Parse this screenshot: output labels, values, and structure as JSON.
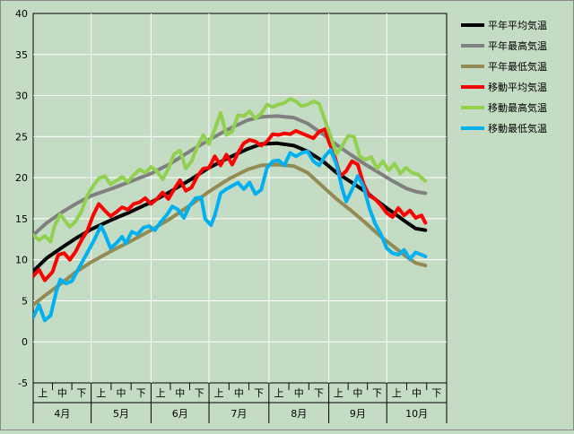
{
  "chart_data": {
    "type": "line",
    "title": "",
    "xlabel": "",
    "ylabel": "",
    "ylim": [
      -5,
      40
    ],
    "yticks": [
      -5,
      0,
      5,
      10,
      15,
      20,
      25,
      30,
      35,
      40
    ],
    "grid": true,
    "legend_position": "top-right",
    "months": [
      "4月",
      "5月",
      "6月",
      "7月",
      "8月",
      "9月",
      "10月"
    ],
    "thirds": [
      "上",
      "中",
      "下"
    ],
    "x_start": "4/1",
    "x_end": "10/31",
    "series": [
      {
        "name": "平年平均気温",
        "color": "#000000",
        "points": [
          [
            0,
            8.6
          ],
          [
            7,
            10.2
          ],
          [
            15,
            11.5
          ],
          [
            22,
            12.6
          ],
          [
            30,
            13.7
          ],
          [
            40,
            14.8
          ],
          [
            50,
            15.8
          ],
          [
            61,
            17.0
          ],
          [
            71,
            18.3
          ],
          [
            81,
            19.7
          ],
          [
            91,
            21.2
          ],
          [
            101,
            22.4
          ],
          [
            111,
            23.5
          ],
          [
            118,
            24.1
          ],
          [
            126,
            24.2
          ],
          [
            135,
            23.9
          ],
          [
            142,
            23.2
          ],
          [
            150,
            22.0
          ],
          [
            157,
            20.6
          ],
          [
            165,
            19.4
          ],
          [
            172,
            18.3
          ],
          [
            179,
            17.0
          ],
          [
            186,
            15.8
          ],
          [
            193,
            14.6
          ],
          [
            198,
            13.8
          ],
          [
            203,
            13.6
          ]
        ]
      },
      {
        "name": "平年最高気温",
        "color": "#808080",
        "points": [
          [
            0,
            13.0
          ],
          [
            7,
            14.5
          ],
          [
            15,
            15.8
          ],
          [
            22,
            16.8
          ],
          [
            30,
            17.8
          ],
          [
            40,
            18.6
          ],
          [
            50,
            19.5
          ],
          [
            61,
            20.5
          ],
          [
            71,
            21.7
          ],
          [
            81,
            23.2
          ],
          [
            91,
            24.6
          ],
          [
            101,
            25.9
          ],
          [
            111,
            27.0
          ],
          [
            118,
            27.4
          ],
          [
            126,
            27.5
          ],
          [
            135,
            27.3
          ],
          [
            142,
            26.6
          ],
          [
            150,
            25.3
          ],
          [
            157,
            24.0
          ],
          [
            165,
            22.7
          ],
          [
            172,
            21.6
          ],
          [
            179,
            20.6
          ],
          [
            186,
            19.6
          ],
          [
            193,
            18.7
          ],
          [
            198,
            18.3
          ],
          [
            203,
            18.1
          ]
        ]
      },
      {
        "name": "平年最低気温",
        "color": "#948a54",
        "points": [
          [
            0,
            4.5
          ],
          [
            7,
            5.8
          ],
          [
            15,
            7.2
          ],
          [
            22,
            8.5
          ],
          [
            30,
            9.7
          ],
          [
            40,
            11.0
          ],
          [
            50,
            12.2
          ],
          [
            61,
            13.6
          ],
          [
            71,
            15.0
          ],
          [
            81,
            16.6
          ],
          [
            91,
            18.3
          ],
          [
            101,
            19.8
          ],
          [
            111,
            21.0
          ],
          [
            118,
            21.5
          ],
          [
            126,
            21.6
          ],
          [
            135,
            21.4
          ],
          [
            142,
            20.6
          ],
          [
            150,
            18.9
          ],
          [
            157,
            17.4
          ],
          [
            165,
            15.9
          ],
          [
            172,
            14.5
          ],
          [
            179,
            13.0
          ],
          [
            186,
            11.7
          ],
          [
            193,
            10.4
          ],
          [
            198,
            9.6
          ],
          [
            203,
            9.3
          ]
        ]
      },
      {
        "name": "移動平均気温",
        "color": "#ff0000",
        "points": [
          [
            0,
            8.0
          ],
          [
            3,
            8.8
          ],
          [
            6,
            7.5
          ],
          [
            10,
            8.5
          ],
          [
            13,
            10.6
          ],
          [
            16,
            10.8
          ],
          [
            19,
            10.0
          ],
          [
            22,
            11.0
          ],
          [
            25,
            12.4
          ],
          [
            28,
            13.5
          ],
          [
            31,
            15.4
          ],
          [
            34,
            16.8
          ],
          [
            37,
            16.0
          ],
          [
            40,
            15.3
          ],
          [
            43,
            15.8
          ],
          [
            46,
            16.4
          ],
          [
            49,
            16.1
          ],
          [
            52,
            16.8
          ],
          [
            55,
            17.0
          ],
          [
            58,
            17.5
          ],
          [
            61,
            16.8
          ],
          [
            64,
            17.4
          ],
          [
            67,
            18.2
          ],
          [
            70,
            17.4
          ],
          [
            73,
            18.6
          ],
          [
            76,
            19.7
          ],
          [
            79,
            18.4
          ],
          [
            82,
            18.8
          ],
          [
            85,
            20.2
          ],
          [
            88,
            21.1
          ],
          [
            91,
            21.2
          ],
          [
            94,
            22.6
          ],
          [
            97,
            21.5
          ],
          [
            100,
            22.8
          ],
          [
            103,
            21.6
          ],
          [
            106,
            23.0
          ],
          [
            109,
            24.2
          ],
          [
            112,
            24.6
          ],
          [
            115,
            24.4
          ],
          [
            118,
            23.9
          ],
          [
            121,
            24.4
          ],
          [
            124,
            25.3
          ],
          [
            127,
            25.2
          ],
          [
            130,
            25.4
          ],
          [
            133,
            25.3
          ],
          [
            136,
            25.7
          ],
          [
            139,
            25.4
          ],
          [
            142,
            25.1
          ],
          [
            145,
            24.8
          ],
          [
            148,
            25.6
          ],
          [
            151,
            25.9
          ],
          [
            153,
            24.4
          ],
          [
            156,
            22.6
          ],
          [
            159,
            20.2
          ],
          [
            162,
            20.8
          ],
          [
            165,
            22.0
          ],
          [
            168,
            21.6
          ],
          [
            171,
            19.2
          ],
          [
            174,
            17.8
          ],
          [
            177,
            17.4
          ],
          [
            180,
            16.6
          ],
          [
            183,
            15.7
          ],
          [
            186,
            15.2
          ],
          [
            189,
            16.3
          ],
          [
            192,
            15.4
          ],
          [
            195,
            16.0
          ],
          [
            198,
            15.1
          ],
          [
            201,
            15.4
          ],
          [
            203,
            14.5
          ]
        ]
      },
      {
        "name": "移動最高気温",
        "color": "#92d050",
        "points": [
          [
            0,
            13.0
          ],
          [
            3,
            12.4
          ],
          [
            6,
            12.9
          ],
          [
            9,
            12.2
          ],
          [
            11,
            14.1
          ],
          [
            14,
            15.5
          ],
          [
            17,
            14.6
          ],
          [
            19,
            14.0
          ],
          [
            22,
            14.7
          ],
          [
            25,
            15.9
          ],
          [
            28,
            17.8
          ],
          [
            31,
            19.0
          ],
          [
            34,
            19.9
          ],
          [
            37,
            20.2
          ],
          [
            40,
            19.2
          ],
          [
            43,
            19.6
          ],
          [
            46,
            20.1
          ],
          [
            49,
            19.5
          ],
          [
            52,
            20.3
          ],
          [
            55,
            21.0
          ],
          [
            58,
            20.6
          ],
          [
            61,
            21.3
          ],
          [
            64,
            20.8
          ],
          [
            67,
            19.8
          ],
          [
            70,
            21.1
          ],
          [
            73,
            22.9
          ],
          [
            76,
            23.3
          ],
          [
            79,
            21.1
          ],
          [
            82,
            22.0
          ],
          [
            85,
            23.8
          ],
          [
            88,
            25.2
          ],
          [
            91,
            24.1
          ],
          [
            94,
            25.9
          ],
          [
            97,
            27.9
          ],
          [
            100,
            25.2
          ],
          [
            103,
            25.6
          ],
          [
            106,
            27.6
          ],
          [
            109,
            27.5
          ],
          [
            112,
            28.1
          ],
          [
            115,
            27.2
          ],
          [
            118,
            27.8
          ],
          [
            121,
            28.9
          ],
          [
            124,
            28.6
          ],
          [
            127,
            28.9
          ],
          [
            130,
            29.1
          ],
          [
            133,
            29.6
          ],
          [
            136,
            29.3
          ],
          [
            139,
            28.7
          ],
          [
            142,
            28.9
          ],
          [
            145,
            29.3
          ],
          [
            148,
            29.0
          ],
          [
            151,
            27.0
          ],
          [
            154,
            25.0
          ],
          [
            157,
            22.9
          ],
          [
            160,
            23.9
          ],
          [
            163,
            25.1
          ],
          [
            166,
            25.0
          ],
          [
            169,
            22.6
          ],
          [
            172,
            22.2
          ],
          [
            175,
            22.5
          ],
          [
            178,
            21.1
          ],
          [
            181,
            22.0
          ],
          [
            184,
            20.9
          ],
          [
            187,
            21.7
          ],
          [
            190,
            20.5
          ],
          [
            193,
            21.2
          ],
          [
            196,
            20.6
          ],
          [
            199,
            20.4
          ],
          [
            203,
            19.6
          ]
        ]
      },
      {
        "name": "移動最低気温",
        "color": "#00b0f0",
        "points": [
          [
            0,
            3.0
          ],
          [
            3,
            4.5
          ],
          [
            6,
            2.6
          ],
          [
            9,
            3.2
          ],
          [
            12,
            6.2
          ],
          [
            14,
            7.6
          ],
          [
            17,
            7.1
          ],
          [
            20,
            7.4
          ],
          [
            23,
            8.7
          ],
          [
            26,
            10.0
          ],
          [
            29,
            11.3
          ],
          [
            32,
            12.6
          ],
          [
            35,
            14.1
          ],
          [
            37,
            13.2
          ],
          [
            40,
            11.4
          ],
          [
            43,
            12.0
          ],
          [
            46,
            12.8
          ],
          [
            48,
            12.0
          ],
          [
            51,
            13.4
          ],
          [
            54,
            13.1
          ],
          [
            57,
            13.9
          ],
          [
            60,
            14.1
          ],
          [
            63,
            13.6
          ],
          [
            66,
            14.6
          ],
          [
            69,
            15.4
          ],
          [
            72,
            16.5
          ],
          [
            75,
            16.1
          ],
          [
            78,
            15.1
          ],
          [
            81,
            16.6
          ],
          [
            84,
            17.5
          ],
          [
            87,
            17.6
          ],
          [
            89,
            15.0
          ],
          [
            92,
            14.2
          ],
          [
            94,
            15.4
          ],
          [
            97,
            18.1
          ],
          [
            100,
            18.6
          ],
          [
            103,
            19.0
          ],
          [
            106,
            19.4
          ],
          [
            109,
            18.6
          ],
          [
            112,
            19.4
          ],
          [
            115,
            18.0
          ],
          [
            118,
            18.5
          ],
          [
            121,
            21.2
          ],
          [
            124,
            22.0
          ],
          [
            127,
            22.1
          ],
          [
            130,
            21.5
          ],
          [
            133,
            23.0
          ],
          [
            136,
            22.6
          ],
          [
            139,
            23.0
          ],
          [
            142,
            23.2
          ],
          [
            145,
            22.0
          ],
          [
            148,
            21.5
          ],
          [
            151,
            22.6
          ],
          [
            154,
            23.4
          ],
          [
            157,
            21.6
          ],
          [
            160,
            18.6
          ],
          [
            162,
            17.1
          ],
          [
            165,
            18.5
          ],
          [
            168,
            20.2
          ],
          [
            171,
            18.9
          ],
          [
            174,
            16.3
          ],
          [
            177,
            14.4
          ],
          [
            180,
            13.1
          ],
          [
            183,
            11.4
          ],
          [
            186,
            10.8
          ],
          [
            189,
            10.6
          ],
          [
            192,
            11.2
          ],
          [
            195,
            10.1
          ],
          [
            198,
            10.9
          ],
          [
            201,
            10.6
          ],
          [
            203,
            10.4
          ]
        ]
      }
    ]
  }
}
